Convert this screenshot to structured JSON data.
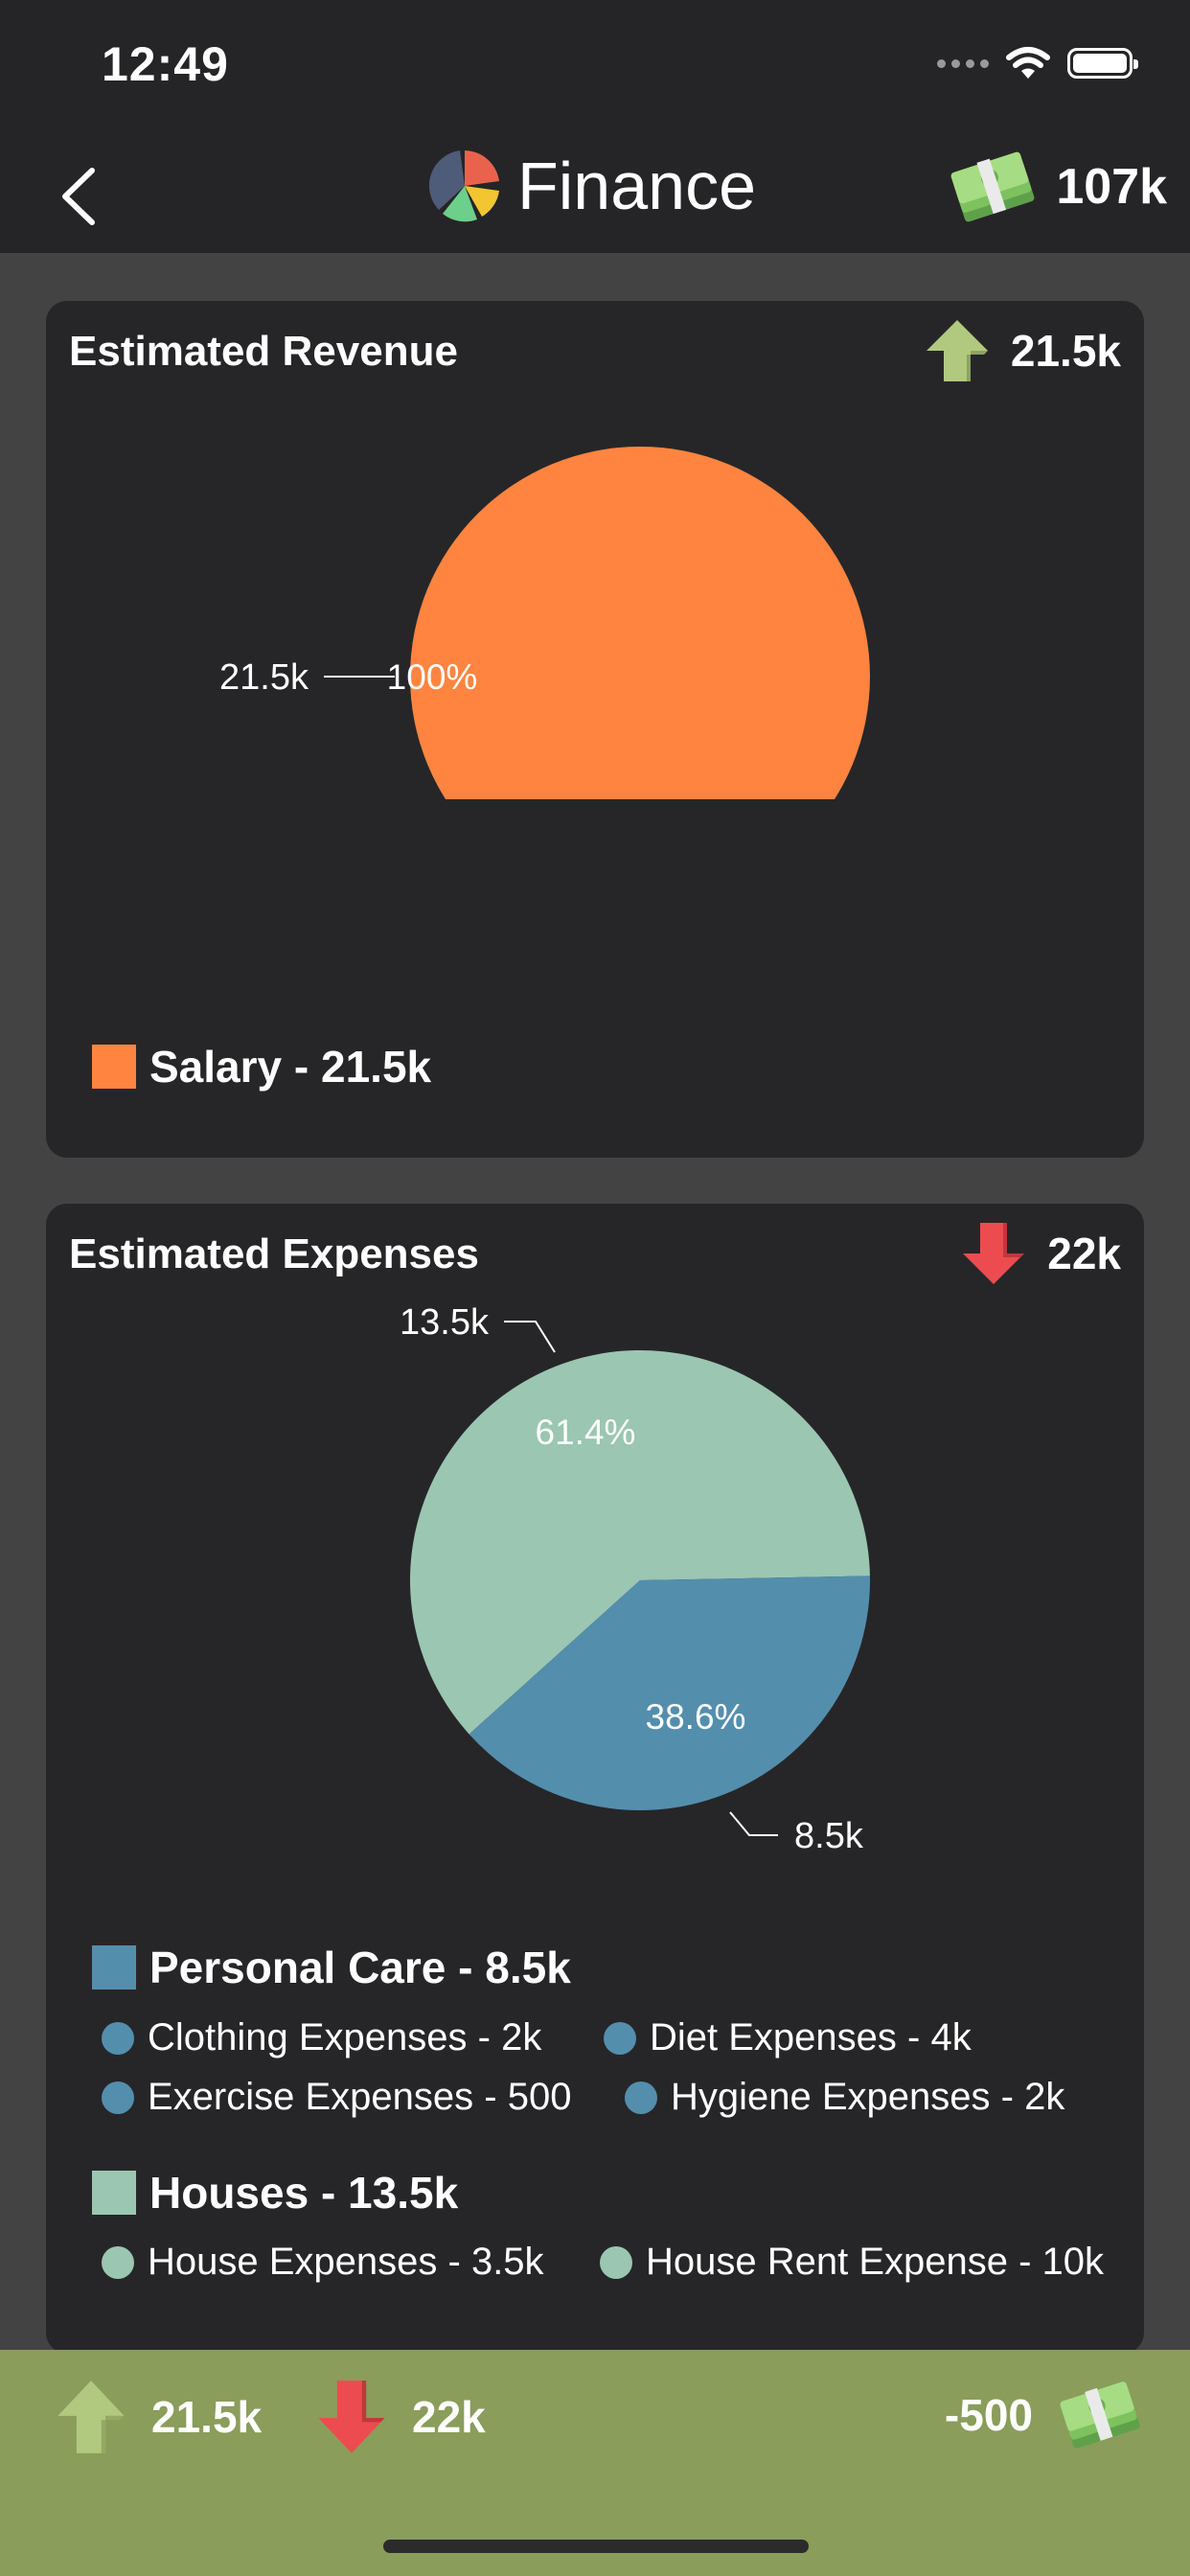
{
  "status_bar": {
    "time": "12:49"
  },
  "nav": {
    "title": "Finance",
    "balance": "107k"
  },
  "revenue": {
    "title": "Estimated Revenue",
    "total": "21.5k",
    "legend": [
      {
        "label": "Salary - 21.5k",
        "color": "#ff8440"
      }
    ]
  },
  "expenses": {
    "title": "Estimated Expenses",
    "total": "22k",
    "groups": [
      {
        "label": "Personal Care - 8.5k",
        "color": "#548ead",
        "items": [
          "Clothing Expenses - 2k",
          "Diet Expenses - 4k",
          "Exercise Expenses - 500",
          "Hygiene Expenses - 2k"
        ]
      },
      {
        "label": "Houses - 13.5k",
        "color": "#9bc6b2",
        "items": [
          "House Expenses - 3.5k",
          "House Rent Expense - 10k"
        ]
      }
    ]
  },
  "summary": {
    "income": "21.5k",
    "expense": "22k",
    "net": "-500"
  },
  "colors": {
    "up_arrow": "#b0c97e",
    "down_arrow": "#ec4c4f",
    "card_bg": "#262628",
    "summary_bg": "#8a9d5b"
  },
  "chart_data": [
    {
      "type": "pie",
      "title": "Estimated Revenue",
      "categories": [
        "Salary"
      ],
      "values": [
        21.5
      ],
      "value_labels": [
        "21.5k"
      ],
      "percent_labels": [
        "100%"
      ],
      "colors": [
        "#ff8440"
      ]
    },
    {
      "type": "pie",
      "title": "Estimated Expenses",
      "categories": [
        "Houses",
        "Personal Care"
      ],
      "values": [
        13.5,
        8.5
      ],
      "value_labels": [
        "13.5k",
        "8.5k"
      ],
      "percent_labels": [
        "61.4%",
        "38.6%"
      ],
      "colors": [
        "#9bc6b2",
        "#548ead"
      ]
    }
  ]
}
